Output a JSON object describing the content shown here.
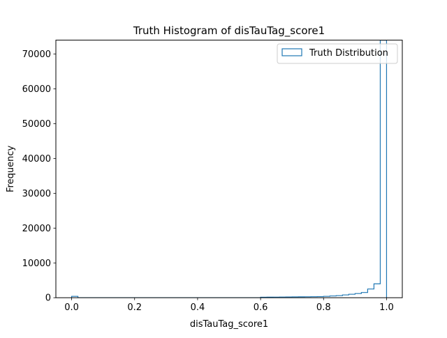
{
  "chart_data": {
    "type": "histogram",
    "title": "Truth Histogram of disTauTag_score1",
    "xlabel": "disTauTag_score1",
    "ylabel": "Frequency",
    "xlim": [
      -0.05,
      1.05
    ],
    "ylim": [
      0,
      74000
    ],
    "xticks": [
      0.0,
      0.2,
      0.4,
      0.6,
      0.8,
      1.0
    ],
    "xtick_labels": [
      "0.0",
      "0.2",
      "0.4",
      "0.6",
      "0.8",
      "1.0"
    ],
    "yticks": [
      0,
      10000,
      20000,
      30000,
      40000,
      50000,
      60000,
      70000
    ],
    "ytick_labels": [
      "0",
      "10000",
      "20000",
      "30000",
      "40000",
      "50000",
      "60000",
      "70000"
    ],
    "grid": false,
    "legend_position": "top-right",
    "series": [
      {
        "name": "Truth Distribution",
        "color": "#1f77b4",
        "histtype": "step",
        "bin_edges": [
          0.0,
          0.02,
          0.04,
          0.06,
          0.08,
          0.1,
          0.12,
          0.14,
          0.16,
          0.18,
          0.2,
          0.22,
          0.24,
          0.26,
          0.28,
          0.3,
          0.32,
          0.34,
          0.36,
          0.38,
          0.4,
          0.42,
          0.44,
          0.46,
          0.48,
          0.5,
          0.52,
          0.54,
          0.56,
          0.58,
          0.6,
          0.62,
          0.64,
          0.66,
          0.68,
          0.7,
          0.72,
          0.74,
          0.76,
          0.78,
          0.8,
          0.82,
          0.84,
          0.86,
          0.88,
          0.9,
          0.92,
          0.94,
          0.96,
          0.98,
          1.0
        ],
        "counts": [
          400,
          0,
          0,
          0,
          0,
          0,
          0,
          0,
          0,
          0,
          0,
          0,
          0,
          0,
          0,
          0,
          0,
          0,
          0,
          0,
          0,
          0,
          0,
          0,
          0,
          0,
          0,
          0,
          0,
          0,
          150,
          170,
          180,
          200,
          220,
          240,
          260,
          280,
          300,
          330,
          400,
          500,
          600,
          800,
          1000,
          1200,
          1500,
          2500,
          4000,
          74000
        ]
      }
    ]
  }
}
